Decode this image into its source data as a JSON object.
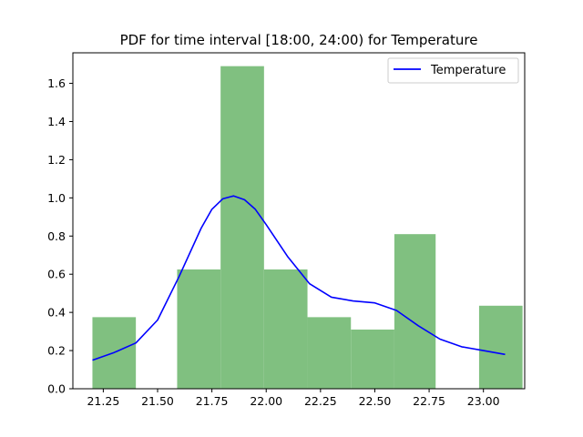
{
  "chart_data": {
    "type": "bar",
    "title": "PDF for time interval [18:00, 24:00) for Temperature",
    "xlabel": "",
    "ylabel": "",
    "xlim": [
      21.11,
      23.19
    ],
    "ylim": [
      0.0,
      1.76
    ],
    "x_ticks": [
      21.25,
      21.5,
      21.75,
      22.0,
      22.25,
      22.5,
      22.75,
      23.0
    ],
    "x_tick_labels": [
      "21.25",
      "21.50",
      "21.75",
      "22.00",
      "22.25",
      "22.50",
      "22.75",
      "23.00"
    ],
    "y_ticks": [
      0.0,
      0.2,
      0.4,
      0.6,
      0.8,
      1.0,
      1.2,
      1.4,
      1.6
    ],
    "y_tick_labels": [
      "0.0",
      "0.2",
      "0.4",
      "0.6",
      "0.8",
      "1.0",
      "1.2",
      "1.4",
      "1.6"
    ],
    "histogram": {
      "color": "#80c080",
      "bins": [
        {
          "x0": 21.2,
          "x1": 21.4,
          "value": 0.375
        },
        {
          "x0": 21.4,
          "x1": 21.59,
          "value": 0.0
        },
        {
          "x0": 21.59,
          "x1": 21.79,
          "value": 0.625
        },
        {
          "x0": 21.79,
          "x1": 21.99,
          "value": 1.69
        },
        {
          "x0": 21.99,
          "x1": 22.19,
          "value": 0.625
        },
        {
          "x0": 22.19,
          "x1": 22.39,
          "value": 0.375
        },
        {
          "x0": 22.39,
          "x1": 22.59,
          "value": 0.31
        },
        {
          "x0": 22.59,
          "x1": 22.78,
          "value": 0.81
        },
        {
          "x0": 22.78,
          "x1": 22.98,
          "value": 0.0
        },
        {
          "x0": 22.98,
          "x1": 23.18,
          "value": 0.435
        }
      ]
    },
    "series": [
      {
        "name": "Temperature",
        "color": "#0000ff",
        "type": "line",
        "x": [
          21.2,
          21.3,
          21.4,
          21.5,
          21.6,
          21.7,
          21.75,
          21.8,
          21.85,
          21.9,
          21.95,
          22.0,
          22.1,
          22.2,
          22.3,
          22.4,
          22.5,
          22.6,
          22.7,
          22.8,
          22.9,
          23.0,
          23.1
        ],
        "y": [
          0.15,
          0.19,
          0.24,
          0.36,
          0.59,
          0.84,
          0.94,
          0.995,
          1.01,
          0.99,
          0.94,
          0.86,
          0.69,
          0.55,
          0.48,
          0.46,
          0.45,
          0.41,
          0.33,
          0.26,
          0.22,
          0.2,
          0.18
        ]
      }
    ],
    "legend": {
      "position": "top-right",
      "entries": [
        "Temperature"
      ]
    },
    "grid": false
  }
}
